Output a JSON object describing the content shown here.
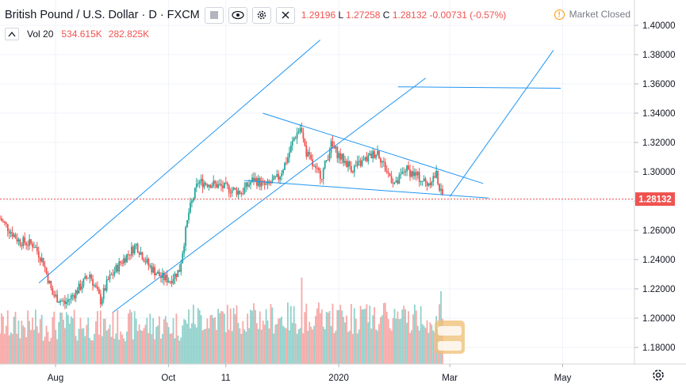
{
  "header": {
    "symbol_title": "British Pound / U.S. Dollar · D · FXCM",
    "ohlc": [
      {
        "key": "",
        "value": "1.29196"
      },
      {
        "key": "L",
        "value": "1.27258"
      },
      {
        "key": "C",
        "value": "1.28132"
      },
      {
        "key": "",
        "value": "-0.00731 (-0.57%)"
      }
    ],
    "market_status": "Market Closed",
    "volume_label": "Vol 20",
    "volume_value_1": "534.615K",
    "volume_value_2": "282.825K"
  },
  "colors": {
    "up": "#26a69a",
    "down": "#ef5350",
    "trendline": "#2196f3",
    "price_tag": "#ef5350",
    "grid": "#f0f3fa"
  },
  "icons": {
    "hide": "eye-icon",
    "settings": "gear-icon",
    "close": "close-icon",
    "info": "info-icon",
    "collapse": "chevron-up-icon"
  },
  "chart_data": {
    "type": "candlestick",
    "y_ticks": [
      "1.18000",
      "1.20000",
      "1.22000",
      "1.24000",
      "1.26000",
      "1.28000",
      "1.30000",
      "1.32000",
      "1.34000",
      "1.36000",
      "1.38000",
      "1.40000"
    ],
    "x_ticks": [
      "Aug",
      "Oct",
      "11",
      "2020",
      "Mar",
      "May"
    ],
    "ylim": [
      1.168,
      1.412
    ],
    "last_price": "1.28132",
    "grid": true,
    "candle_anchors": [
      {
        "i": 0,
        "p": 1.268
      },
      {
        "i": 12,
        "p": 1.253
      },
      {
        "i": 22,
        "p": 1.25
      },
      {
        "i": 28,
        "p": 1.238
      },
      {
        "i": 34,
        "p": 1.216
      },
      {
        "i": 42,
        "p": 1.21
      },
      {
        "i": 50,
        "p": 1.219
      },
      {
        "i": 58,
        "p": 1.23
      },
      {
        "i": 65,
        "p": 1.212
      },
      {
        "i": 70,
        "p": 1.226
      },
      {
        "i": 78,
        "p": 1.238
      },
      {
        "i": 88,
        "p": 1.25
      },
      {
        "i": 96,
        "p": 1.236
      },
      {
        "i": 104,
        "p": 1.228
      },
      {
        "i": 110,
        "p": 1.226
      },
      {
        "i": 116,
        "p": 1.233
      },
      {
        "i": 122,
        "p": 1.272
      },
      {
        "i": 128,
        "p": 1.293
      },
      {
        "i": 136,
        "p": 1.292
      },
      {
        "i": 146,
        "p": 1.289
      },
      {
        "i": 156,
        "p": 1.286
      },
      {
        "i": 164,
        "p": 1.295
      },
      {
        "i": 172,
        "p": 1.29
      },
      {
        "i": 180,
        "p": 1.296
      },
      {
        "i": 186,
        "p": 1.31
      },
      {
        "i": 190,
        "p": 1.323
      },
      {
        "i": 194,
        "p": 1.33
      },
      {
        "i": 198,
        "p": 1.313
      },
      {
        "i": 204,
        "p": 1.3
      },
      {
        "i": 208,
        "p": 1.298
      },
      {
        "i": 214,
        "p": 1.318
      },
      {
        "i": 220,
        "p": 1.31
      },
      {
        "i": 228,
        "p": 1.302
      },
      {
        "i": 236,
        "p": 1.308
      },
      {
        "i": 244,
        "p": 1.314
      },
      {
        "i": 250,
        "p": 1.3
      },
      {
        "i": 256,
        "p": 1.291
      },
      {
        "i": 262,
        "p": 1.302
      },
      {
        "i": 268,
        "p": 1.298
      },
      {
        "i": 276,
        "p": 1.292
      },
      {
        "i": 282,
        "p": 1.298
      },
      {
        "i": 285,
        "p": 1.285
      },
      {
        "i": 286,
        "p": 1.281
      }
    ],
    "volume_spikes": [
      {
        "i": 195,
        "v": 0.95
      },
      {
        "i": 285,
        "v": 0.8
      }
    ],
    "trendlines": [
      {
        "from": [
          "2019-07-23",
          1.224
        ],
        "to": [
          "2019-12-22",
          1.39
        ]
      },
      {
        "from": [
          "2019-09-01",
          1.204
        ],
        "to": [
          "2020-02-17",
          1.364
        ]
      },
      {
        "from": [
          "2019-11-21",
          1.34
        ],
        "to": [
          "2020-03-19",
          1.292
        ]
      },
      {
        "from": [
          "2019-11-11",
          1.294
        ],
        "to": [
          "2020-03-22",
          1.282
        ]
      },
      {
        "from": [
          "2020-03-01",
          1.283
        ],
        "to": [
          "2020-04-26",
          1.383
        ]
      },
      {
        "from": [
          "2020-02-02",
          1.358
        ],
        "to": [
          "2020-04-30",
          1.357
        ]
      }
    ]
  }
}
